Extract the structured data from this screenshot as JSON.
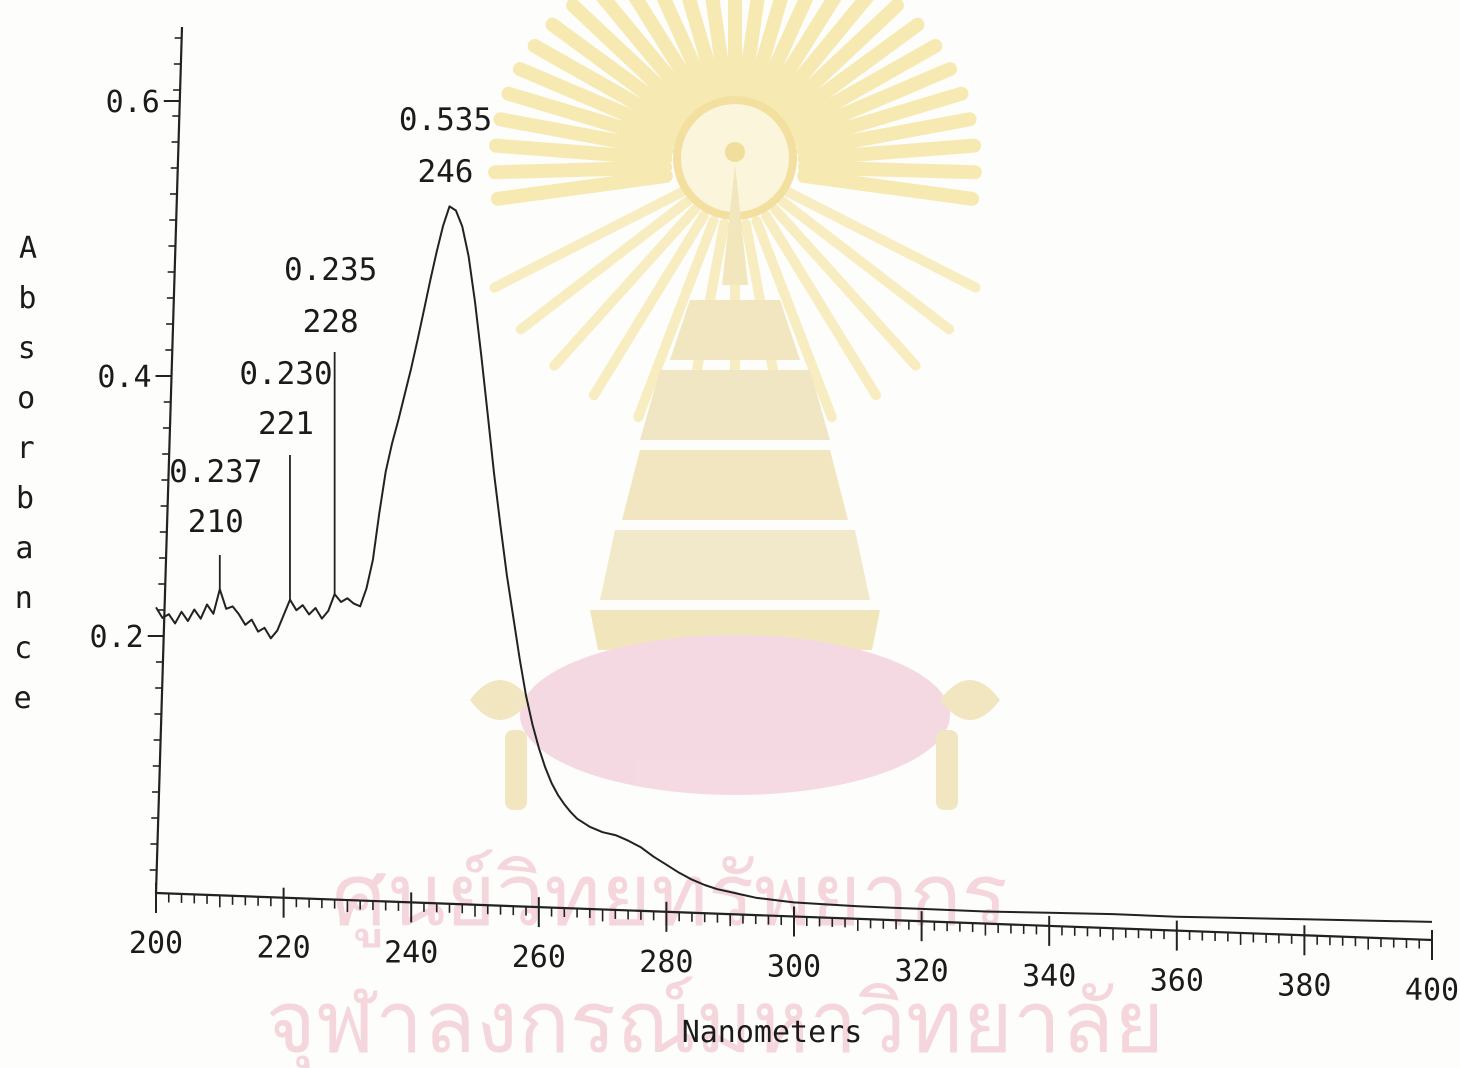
{
  "watermark": {
    "line1": "ศูนย์วิทยทรัพยากร",
    "line2": "จุฬาลงกรณ์มหาวิทยาลัย",
    "logo_icon": "chulalongkorn-phra-kiao-emblem-icon",
    "logo_colors": {
      "rays": "#f7e6a6",
      "crown": "#efe2b3",
      "cushion": "#f1cfdc"
    }
  },
  "chart_data": {
    "type": "line",
    "xlabel": "Nanometers",
    "ylabel": "Absorbance",
    "xlim": [
      200,
      400
    ],
    "ylim": [
      0.0,
      0.65
    ],
    "x_ticks": [
      200,
      220,
      240,
      260,
      280,
      300,
      320,
      340,
      360,
      380,
      400
    ],
    "x_tick_labels": [
      "200",
      "220",
      "240",
      "260",
      "280",
      "300",
      "320",
      "340",
      "360",
      "380",
      "400"
    ],
    "y_ticks": [
      0.2,
      0.4,
      0.6
    ],
    "y_tick_labels": [
      "0.2",
      "0.4",
      "0.6"
    ],
    "grid": false,
    "series": [
      {
        "color": "#222222",
        "x": [
          200,
          201,
          202,
          203,
          204,
          205,
          206,
          207,
          208,
          209,
          210,
          211,
          212,
          213,
          214,
          215,
          216,
          217,
          218,
          219,
          220,
          221,
          222,
          223,
          224,
          225,
          226,
          227,
          228,
          229,
          230,
          231,
          232,
          233,
          234,
          235,
          236,
          237,
          238,
          239,
          240,
          241,
          242,
          243,
          244,
          245,
          246,
          247,
          248,
          249,
          250,
          251,
          252,
          253,
          254,
          255,
          256,
          257,
          258,
          259,
          260,
          261,
          262,
          263,
          264,
          265,
          266,
          268,
          270,
          272,
          274,
          276,
          278,
          280,
          282,
          284,
          286,
          288,
          290,
          292,
          294,
          296,
          298,
          300,
          305,
          310,
          320,
          330,
          340,
          350,
          360,
          370,
          380,
          390,
          400
        ],
        "y": [
          0.222,
          0.214,
          0.217,
          0.21,
          0.219,
          0.212,
          0.221,
          0.214,
          0.225,
          0.218,
          0.237,
          0.222,
          0.224,
          0.218,
          0.21,
          0.214,
          0.205,
          0.208,
          0.2,
          0.206,
          0.218,
          0.23,
          0.222,
          0.226,
          0.219,
          0.224,
          0.216,
          0.222,
          0.235,
          0.229,
          0.232,
          0.228,
          0.226,
          0.24,
          0.262,
          0.298,
          0.33,
          0.352,
          0.37,
          0.39,
          0.41,
          0.432,
          0.455,
          0.478,
          0.5,
          0.52,
          0.535,
          0.532,
          0.52,
          0.497,
          0.462,
          0.42,
          0.375,
          0.33,
          0.29,
          0.252,
          0.22,
          0.188,
          0.16,
          0.138,
          0.12,
          0.105,
          0.093,
          0.084,
          0.077,
          0.071,
          0.066,
          0.06,
          0.056,
          0.054,
          0.05,
          0.045,
          0.038,
          0.032,
          0.026,
          0.021,
          0.017,
          0.014,
          0.012,
          0.01,
          0.008,
          0.007,
          0.006,
          0.005,
          0.004,
          0.003,
          0.002,
          0.001,
          0.001,
          0.001,
          0.0,
          0.0,
          0.0,
          0.0,
          0.0
        ]
      }
    ],
    "annotations": [
      {
        "x": 210,
        "y": 0.237,
        "value_label": "0.237",
        "wavelength_label": "210"
      },
      {
        "x": 221,
        "y": 0.23,
        "value_label": "0.230",
        "wavelength_label": "221"
      },
      {
        "x": 228,
        "y": 0.235,
        "value_label": "0.235",
        "wavelength_label": "228"
      },
      {
        "x": 246,
        "y": 0.535,
        "value_label": "0.535",
        "wavelength_label": "246"
      }
    ]
  }
}
